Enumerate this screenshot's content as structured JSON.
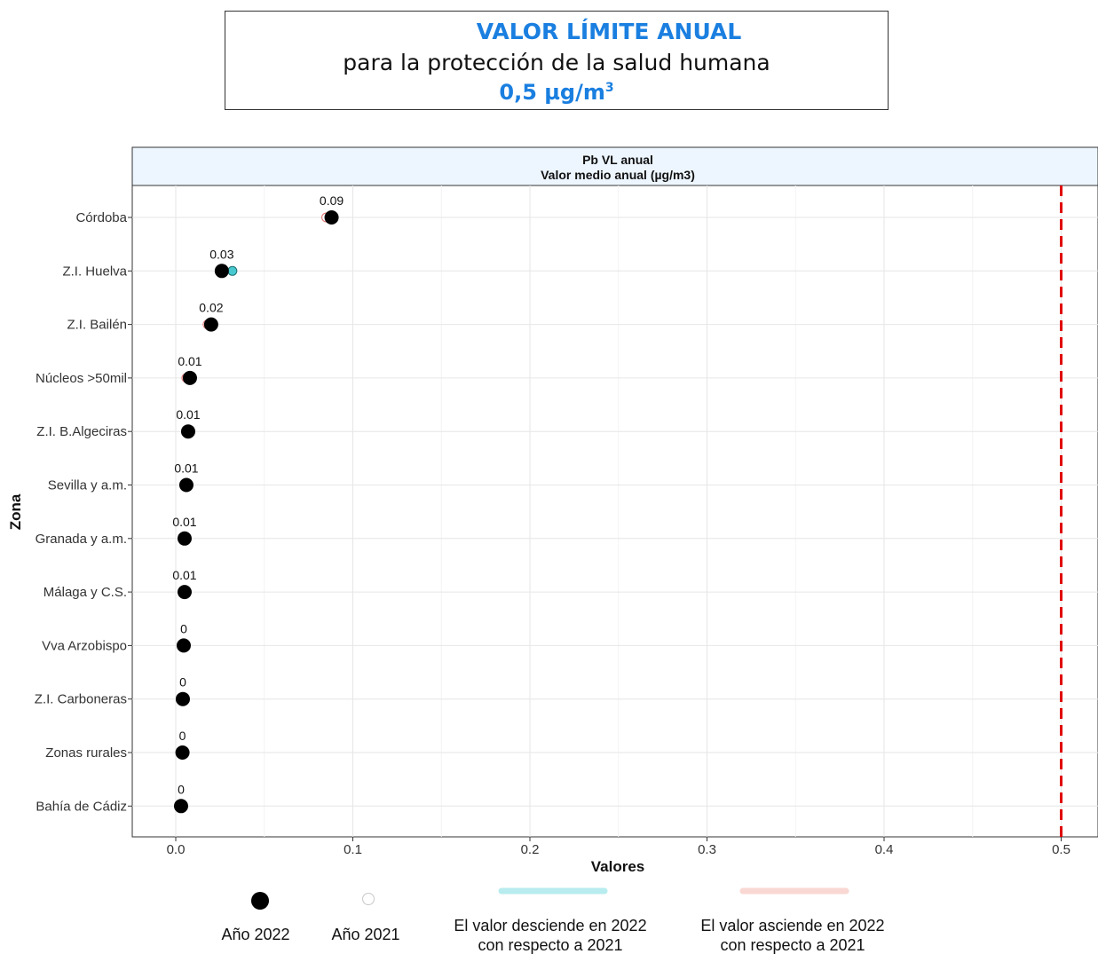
{
  "header": {
    "line1": "VALOR LÍMITE ANUAL",
    "line2": "para la protección de la salud humana",
    "line3_value": "0,5 µg/m",
    "line3_sup": "3"
  },
  "colors": {
    "year2022": "#000000",
    "year2021_stroke": "#c0c0c0",
    "descend": "#b8ecee",
    "ascend": "#f9d7d3",
    "limit_line": "#e00000",
    "panel_header_bg": "#edf6ff"
  },
  "chart_data": {
    "type": "scatter",
    "panel_title": "Pb VL anual",
    "panel_subtitle": "Valor medio anual (µg/m3)",
    "xlabel": "Valores",
    "ylabel": "Zona",
    "xlim": [
      -0.025,
      0.52
    ],
    "x_ticks": [
      0.0,
      0.1,
      0.2,
      0.3,
      0.4,
      0.5
    ],
    "x_tick_labels": [
      "0.0",
      "0.1",
      "0.2",
      "0.3",
      "0.4",
      "0.5"
    ],
    "limit_value": 0.5,
    "grid": true,
    "categories": [
      "Córdoba",
      "Z.I. Huelva",
      "Z.I. Bailén",
      "Núcleos >50mil",
      "Z.I. B.Algeciras",
      "Sevilla y a.m.",
      "Granada y a.m.",
      "Málaga y C.S.",
      "Vva Arzobispo",
      "Z.I. Carboneras",
      "Zonas rurales",
      "Bahía de Cádiz"
    ],
    "series": [
      {
        "name": "Año 2022",
        "values": [
          0.088,
          0.026,
          0.02,
          0.008,
          0.007,
          0.006,
          0.005,
          0.005,
          0.0045,
          0.004,
          0.0038,
          0.003
        ]
      },
      {
        "name": "Año 2021",
        "values": [
          0.085,
          0.032,
          0.018,
          0.006,
          0.007,
          0.006,
          0.005,
          0.005,
          0.0045,
          0.004,
          0.0038,
          0.003
        ]
      }
    ],
    "point_labels": [
      "0.09",
      "0.03",
      "0.02",
      "0.01",
      "0.01",
      "0.01",
      "0.01",
      "0.01",
      "0",
      "0",
      "0",
      "0"
    ],
    "legend": {
      "position": "bottom",
      "items": [
        {
          "key": "y2022",
          "label": "Año 2022"
        },
        {
          "key": "y2021",
          "label": "Año 2021"
        },
        {
          "key": "descend",
          "label_line1": "El valor desciende en 2022",
          "label_line2": "con respecto a 2021"
        },
        {
          "key": "ascend",
          "label_line1": "El valor asciende en 2022",
          "label_line2": "con respecto a 2021"
        }
      ]
    }
  }
}
